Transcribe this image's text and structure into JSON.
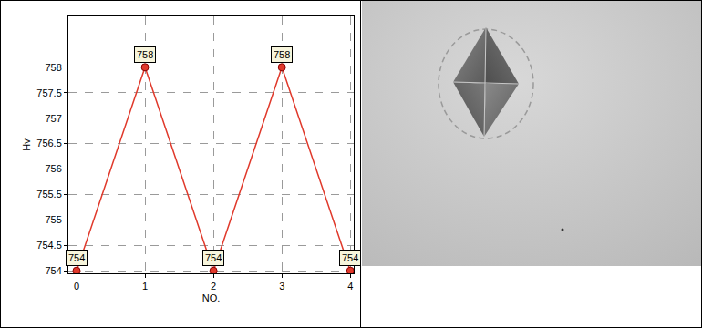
{
  "chart_data": {
    "type": "line",
    "x": [
      0,
      1,
      2,
      3,
      4
    ],
    "values": [
      754,
      758,
      754,
      758,
      754
    ],
    "xlabel": "NO.",
    "ylabel": "Hv",
    "color": "#e0392b",
    "marker": "circle",
    "line_style": "solid",
    "xlim": [
      -0.12,
      4.05
    ],
    "ylim": [
      753.95,
      759
    ],
    "xticks": [
      0,
      1,
      2,
      3,
      4
    ],
    "yticks": [
      754,
      754.5,
      755,
      755.5,
      756,
      756.5,
      757,
      757.5,
      758
    ],
    "grid": true,
    "data_labels": true
  }
}
